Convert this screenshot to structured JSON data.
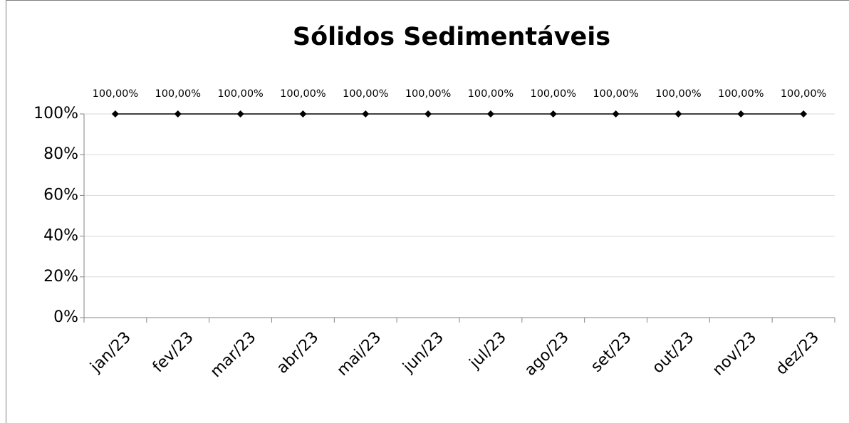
{
  "chart_data": {
    "type": "line",
    "title": "Sólidos Sedimentáveis",
    "categories": [
      "jan/23",
      "fev/23",
      "mar/23",
      "abr/23",
      "mai/23",
      "jun/23",
      "jul/23",
      "ago/23",
      "set/23",
      "out/23",
      "nov/23",
      "dez/23"
    ],
    "values": [
      100,
      100,
      100,
      100,
      100,
      100,
      100,
      100,
      100,
      100,
      100,
      100
    ],
    "value_labels": [
      "100,00%",
      "100,00%",
      "100,00%",
      "100,00%",
      "100,00%",
      "100,00%",
      "100,00%",
      "100,00%",
      "100,00%",
      "100,00%",
      "100,00%",
      "100,00%"
    ],
    "color": "#000000",
    "ylim": [
      0,
      100
    ],
    "yticks": [
      {
        "value": 0,
        "label": "0%"
      },
      {
        "value": 20,
        "label": "20%"
      },
      {
        "value": 40,
        "label": "40%"
      },
      {
        "value": 60,
        "label": "60%"
      },
      {
        "value": 80,
        "label": "80%"
      },
      {
        "value": 100,
        "label": "100%"
      }
    ],
    "grid": true
  }
}
